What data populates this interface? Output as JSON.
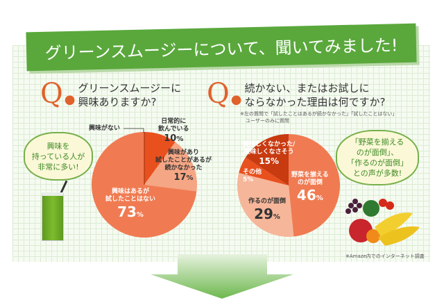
{
  "banner": {
    "title": "グリーンスムージーについて、聞いてみました!"
  },
  "q_mark": "Q",
  "q1": {
    "line1": "グリーンスムージーに",
    "line2": "興味ありますか?"
  },
  "q2": {
    "line1": "続かない、またはお試しに",
    "line2": "ならなかった理由は何ですか?",
    "note1": "※左の質問で「試したことはあるが続かなかった」「試したことはない」",
    "note2": "ユーザーのみに質問"
  },
  "cloud_left": {
    "l1": "興味を",
    "l2": "持っている人が",
    "l3": "非常に多い!"
  },
  "cloud_right": {
    "l1": "「野菜を揃える",
    "l2": "のが面倒」、",
    "l3": "「作るのが面倒」",
    "l4": "との声が多数!"
  },
  "survey_note": "※Amaze内でのインターネット調査",
  "pct_sign": "%",
  "chart_data": [
    {
      "type": "pie",
      "title": "グリーンスムージーに興味ありますか?",
      "slices": [
        {
          "label": "興味がない",
          "value": 0,
          "color": "#c83a10"
        },
        {
          "label": "日常的に飲んでいる",
          "value": 10,
          "color": "#e8501e"
        },
        {
          "label": "興味があり試したことがあるが続かなかった",
          "value": 17,
          "color": "#f5a684"
        },
        {
          "label": "興味はあるが試したことはない",
          "value": 73,
          "color": "#f07b52"
        }
      ],
      "label_lines": [
        [
          "興味がない"
        ],
        [
          "日常的に",
          "飲んでいる"
        ],
        [
          "興味があり",
          "試したことがあるが",
          "続かなかった"
        ],
        [
          "興味はあるが",
          "試したことはない"
        ]
      ]
    },
    {
      "type": "pie",
      "title": "続かない、またはお試しにならなかった理由は何ですか?",
      "slices": [
        {
          "label": "野菜を揃えるのが面倒",
          "value": 46,
          "color": "#f07b52"
        },
        {
          "label": "作るのが面倒",
          "value": 29,
          "color": "#f6b69a"
        },
        {
          "label": "その他",
          "value": 5,
          "color": "#e8501e"
        },
        {
          "label": "美味しくなかった/美味しくなさそう",
          "value": 15,
          "color": "#c83a10"
        }
      ],
      "label_lines": [
        [
          "野菜を揃える",
          "のが面倒"
        ],
        [
          "作るのが面倒"
        ],
        [
          "その他"
        ],
        [
          "美味しくなかった/",
          "美味しくなさそう"
        ]
      ]
    }
  ]
}
